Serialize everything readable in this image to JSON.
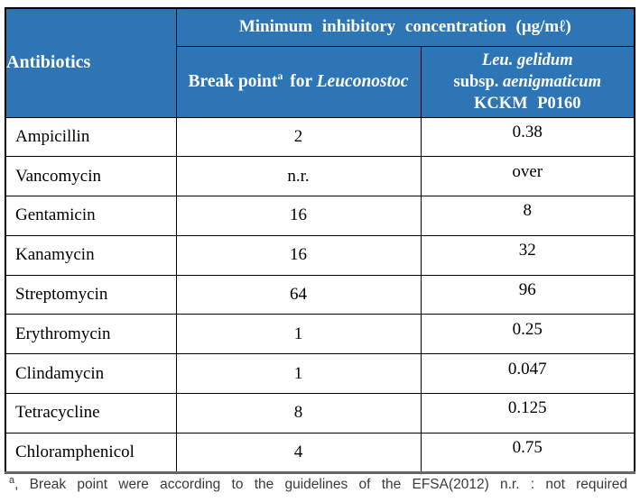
{
  "table": {
    "header": {
      "antibiotics_label": "Antibiotics",
      "mic_title": "Minimum inhibitory concentration (μg/mℓ)",
      "breakpoint": {
        "prefix": "Break point",
        "superscript": "a",
        "middle": " for ",
        "species_italic": "Leuconostoc"
      },
      "strain": {
        "line1_italic": "Leu. gelidum",
        "line2_prefix": "subsp. ",
        "line2_italic": "aenigmaticum",
        "line3": "KCKM P0160"
      }
    },
    "rows": [
      {
        "antibiotic": "Ampicillin",
        "breakpoint": "2",
        "mic": "0.38"
      },
      {
        "antibiotic": "Vancomycin",
        "breakpoint": "n.r.",
        "mic": "over"
      },
      {
        "antibiotic": "Gentamicin",
        "breakpoint": "16",
        "mic": "8"
      },
      {
        "antibiotic": "Kanamycin",
        "breakpoint": "16",
        "mic": "32"
      },
      {
        "antibiotic": "Streptomycin",
        "breakpoint": "64",
        "mic": "96"
      },
      {
        "antibiotic": "Erythromycin",
        "breakpoint": "1",
        "mic": "0.25"
      },
      {
        "antibiotic": "Clindamycin",
        "breakpoint": "1",
        "mic": "0.047"
      },
      {
        "antibiotic": "Tetracycline",
        "breakpoint": "8",
        "mic": "0.125"
      },
      {
        "antibiotic": "Chloramphenicol",
        "breakpoint": "4",
        "mic": "0.75"
      }
    ]
  },
  "footnote": {
    "superscript": "a",
    "text": ", Break point were according to the guidelines of the EFSA(2012) n.r. : not required"
  },
  "colors": {
    "header_bg": "#2E75B6",
    "header_text": "#FFFFFF",
    "body_text": "#000000",
    "border": "#000000",
    "footnote_text": "#3A3A3A"
  },
  "chart_data": {
    "type": "table",
    "title": "Minimum inhibitory concentration (μg/mℓ)",
    "columns": [
      "Antibiotics",
      "Break point for Leuconostoc",
      "Leu. gelidum subsp. aenigmaticum KCKM P0160"
    ],
    "rows": [
      [
        "Ampicillin",
        "2",
        "0.38"
      ],
      [
        "Vancomycin",
        "n.r.",
        "over"
      ],
      [
        "Gentamicin",
        "16",
        "8"
      ],
      [
        "Kanamycin",
        "16",
        "32"
      ],
      [
        "Streptomycin",
        "64",
        "96"
      ],
      [
        "Erythromycin",
        "1",
        "0.25"
      ],
      [
        "Clindamycin",
        "1",
        "0.047"
      ],
      [
        "Tetracycline",
        "8",
        "0.125"
      ],
      [
        "Chloramphenicol",
        "4",
        "0.75"
      ]
    ]
  }
}
